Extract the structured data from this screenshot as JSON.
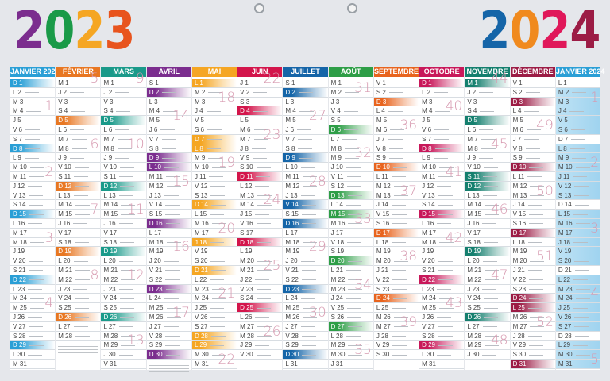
{
  "years": {
    "left": {
      "digits": [
        "2",
        "0",
        "2",
        "3"
      ],
      "colors": [
        "#7b2d8e",
        "#1a9a48",
        "#f5a623",
        "#e8541e"
      ]
    },
    "right": {
      "digits": [
        "2",
        "0",
        "2",
        "4"
      ],
      "colors": [
        "#1565a8",
        "#f08a1e",
        "#e0185a",
        "#9c1c45"
      ]
    }
  },
  "months": [
    {
      "name": "JANVIER 2023",
      "color": "#2a9fd6",
      "holidays": [
        1
      ],
      "weeks": {
        "4": 1,
        "11": 2,
        "18": 3,
        "25": 4
      },
      "days": [
        "D 1",
        "L 2",
        "M 3",
        "M 4",
        "J 5",
        "V 6",
        "S 7",
        "D 8",
        "L 9",
        "M 10",
        "M 11",
        "J 12",
        "V 13",
        "S 14",
        "D 15",
        "L 16",
        "M 17",
        "M 18",
        "J 19",
        "V 20",
        "S 21",
        "D 22",
        "L 23",
        "M 24",
        "M 25",
        "J 26",
        "V 27",
        "S 28",
        "D 29",
        "L 30",
        "M 31"
      ]
    },
    {
      "name": "FÉVRIER",
      "color": "#e87722",
      "holidays": [],
      "weeks": {
        "1": 5,
        "8": 6,
        "15": 7,
        "22": 8
      },
      "days": [
        "M 1",
        "J 2",
        "V 3",
        "S 4",
        "D 5",
        "L 6",
        "M 7",
        "M 8",
        "J 9",
        "V 10",
        "S 11",
        "D 12",
        "L 13",
        "M 14",
        "M 15",
        "J 16",
        "V 17",
        "S 18",
        "D 19",
        "L 20",
        "M 21",
        "M 22",
        "J 23",
        "V 24",
        "S 25",
        "D 26",
        "L 27",
        "M 28"
      ]
    },
    {
      "name": "MARS",
      "color": "#1a9a8a",
      "holidays": [],
      "weeks": {
        "1": 9,
        "8": 10,
        "15": 11,
        "22": 12,
        "29": 13
      },
      "days": [
        "M 1",
        "J 2",
        "V 3",
        "S 4",
        "D 5",
        "L 6",
        "M 7",
        "M 8",
        "J 9",
        "V 10",
        "S 11",
        "D 12",
        "L 13",
        "M 14",
        "M 15",
        "J 16",
        "V 17",
        "S 18",
        "D 19",
        "L 20",
        "M 21",
        "M 22",
        "J 23",
        "V 24",
        "S 25",
        "D 26",
        "L 27",
        "M 28",
        "M 29",
        "J 30",
        "V 31"
      ]
    },
    {
      "name": "AVRIL",
      "color": "#7b2d8e",
      "holidays": [
        10
      ],
      "weeks": {
        "5": 14,
        "12": 15,
        "19": 16,
        "26": 17
      },
      "days": [
        "S 1",
        "D 2",
        "L 3",
        "M 4",
        "M 5",
        "J 6",
        "V 7",
        "S 8",
        "D 9",
        "L 10",
        "M 11",
        "M 12",
        "J 13",
        "V 14",
        "S 15",
        "D 16",
        "L 17",
        "M 18",
        "M 19",
        "J 20",
        "V 21",
        "S 22",
        "D 23",
        "L 24",
        "M 25",
        "M 26",
        "J 27",
        "V 28",
        "S 29",
        "D 30"
      ]
    },
    {
      "name": "MAI",
      "color": "#f5a623",
      "holidays": [
        1,
        8,
        18,
        29
      ],
      "weeks": {
        "3": 18,
        "10": 19,
        "17": 20,
        "24": 21,
        "31": 22
      },
      "days": [
        "L 1",
        "M 2",
        "M 3",
        "J 4",
        "V 5",
        "S 6",
        "D 7",
        "L 8",
        "M 9",
        "M 10",
        "J 11",
        "V 12",
        "S 13",
        "D 14",
        "L 15",
        "M 16",
        "M 17",
        "J 18",
        "V 19",
        "S 20",
        "D 21",
        "L 22",
        "M 23",
        "M 24",
        "J 25",
        "V 26",
        "S 27",
        "D 28",
        "L 29",
        "M 30",
        "M 31"
      ]
    },
    {
      "name": "JUIN",
      "color": "#d3154b",
      "holidays": [],
      "weeks": {
        "1": 22,
        "7": 23,
        "14": 24,
        "21": 25,
        "28": 26
      },
      "days": [
        "J 1",
        "V 2",
        "S 3",
        "D 4",
        "L 5",
        "M 6",
        "M 7",
        "J 8",
        "V 9",
        "S 10",
        "D 11",
        "L 12",
        "M 13",
        "M 14",
        "J 15",
        "V 16",
        "S 17",
        "D 18",
        "L 19",
        "M 20",
        "M 21",
        "J 22",
        "V 23",
        "S 24",
        "D 25",
        "L 26",
        "M 27",
        "M 28",
        "J 29",
        "V 30"
      ]
    },
    {
      "name": "JUILLET",
      "color": "#1565a8",
      "holidays": [
        14
      ],
      "weeks": {
        "5": 27,
        "12": 28,
        "19": 29,
        "26": 30
      },
      "days": [
        "S 1",
        "D 2",
        "L 3",
        "M 4",
        "M 5",
        "J 6",
        "V 7",
        "S 8",
        "D 9",
        "L 10",
        "M 11",
        "M 12",
        "J 13",
        "V 14",
        "S 15",
        "D 16",
        "L 17",
        "M 18",
        "M 19",
        "J 20",
        "V 21",
        "S 22",
        "D 23",
        "L 24",
        "M 25",
        "M 26",
        "J 27",
        "V 28",
        "S 29",
        "D 30",
        "L 31"
      ]
    },
    {
      "name": "AOÛT",
      "color": "#2e9e47",
      "holidays": [
        15
      ],
      "weeks": {
        "2": 31,
        "9": 32,
        "16": 33,
        "23": 34,
        "30": 35
      },
      "days": [
        "M 1",
        "M 2",
        "J 3",
        "V 4",
        "S 5",
        "D 6",
        "L 7",
        "M 8",
        "M 9",
        "J 10",
        "V 11",
        "S 12",
        "D 13",
        "L 14",
        "M 15",
        "M 16",
        "J 17",
        "V 18",
        "S 19",
        "D 20",
        "L 21",
        "M 22",
        "M 23",
        "J 24",
        "V 25",
        "S 26",
        "D 27",
        "L 28",
        "M 29",
        "M 30",
        "J 31"
      ]
    },
    {
      "name": "SEPTEMBRE",
      "color": "#e8641e",
      "holidays": [],
      "weeks": {
        "6": 36,
        "13": 37,
        "20": 38,
        "27": 39
      },
      "days": [
        "V 1",
        "S 2",
        "D 3",
        "L 4",
        "M 5",
        "M 6",
        "J 7",
        "V 8",
        "S 9",
        "D 10",
        "L 11",
        "M 12",
        "M 13",
        "J 14",
        "V 15",
        "S 16",
        "D 17",
        "L 18",
        "M 19",
        "M 20",
        "J 21",
        "V 22",
        "S 23",
        "D 24",
        "L 25",
        "M 26",
        "M 27",
        "J 28",
        "V 29",
        "S 30"
      ]
    },
    {
      "name": "OCTOBRE",
      "color": "#c8185a",
      "holidays": [],
      "weeks": {
        "4": 40,
        "11": 41,
        "18": 42,
        "25": 43
      },
      "days": [
        "D 1",
        "L 2",
        "M 3",
        "M 4",
        "J 5",
        "V 6",
        "S 7",
        "D 8",
        "L 9",
        "M 10",
        "M 11",
        "J 12",
        "V 13",
        "S 14",
        "D 15",
        "L 16",
        "M 17",
        "M 18",
        "J 19",
        "V 20",
        "S 21",
        "D 22",
        "L 23",
        "M 24",
        "M 25",
        "J 26",
        "V 27",
        "S 28",
        "D 29",
        "L 30",
        "M 31"
      ]
    },
    {
      "name": "NOVEMBRE",
      "color": "#147f6e",
      "holidays": [
        1,
        11
      ],
      "weeks": {
        "1": 44,
        "8": 45,
        "15": 46,
        "22": 47,
        "29": 48
      },
      "days": [
        "M 1",
        "J 2",
        "V 3",
        "S 4",
        "D 5",
        "L 6",
        "M 7",
        "M 8",
        "J 9",
        "V 10",
        "S 11",
        "D 12",
        "L 13",
        "M 14",
        "M 15",
        "J 16",
        "V 17",
        "S 18",
        "D 19",
        "L 20",
        "M 21",
        "M 22",
        "J 23",
        "V 24",
        "S 25",
        "D 26",
        "L 27",
        "M 28",
        "M 29",
        "J 30"
      ]
    },
    {
      "name": "DÉCEMBRE",
      "color": "#9c1c45",
      "holidays": [
        25
      ],
      "weeks": {
        "6": 49,
        "13": 50,
        "20": 51,
        "27": 52
      },
      "days": [
        "V 1",
        "S 2",
        "D 3",
        "L 4",
        "M 5",
        "M 6",
        "J 7",
        "V 8",
        "S 9",
        "D 10",
        "L 11",
        "M 12",
        "M 13",
        "J 14",
        "V 15",
        "S 16",
        "D 17",
        "L 18",
        "M 19",
        "M 20",
        "J 21",
        "V 22",
        "S 23",
        "D 24",
        "L 25",
        "M 26",
        "M 27",
        "J 28",
        "V 29",
        "S 30",
        "D 31"
      ]
    },
    {
      "name": "JANVIER 2024",
      "color": "#2a9fd6",
      "holidays": [],
      "shaded": true,
      "weeks": {
        "3": 1,
        "10": 2,
        "17": 3,
        "24": 4,
        "31": 5
      },
      "days": [
        "L 1",
        "M 2",
        "M 3",
        "J 4",
        "V 5",
        "S 6",
        "D 7",
        "L 8",
        "M 9",
        "M 10",
        "J 11",
        "V 12",
        "S 13",
        "D 14",
        "L 15",
        "M 16",
        "M 17",
        "J 18",
        "V 19",
        "S 20",
        "D 21",
        "L 22",
        "M 23",
        "M 24",
        "J 25",
        "V 26",
        "S 27",
        "D 28",
        "L 29",
        "M 30",
        "M 31"
      ]
    }
  ]
}
